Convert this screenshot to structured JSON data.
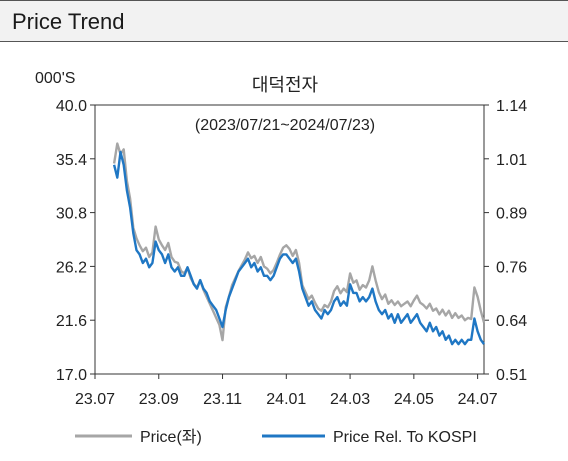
{
  "header": {
    "title": "Price Trend"
  },
  "chart_data": {
    "type": "line",
    "title": "대덕전자",
    "subtitle": "(2023/07/21~2024/07/23)",
    "left_axis": {
      "unit": "000'S",
      "ticks": [
        "40.0",
        "35.4",
        "30.8",
        "26.2",
        "21.6",
        "17.0"
      ],
      "range": [
        17.0,
        40.0
      ]
    },
    "right_axis": {
      "ticks": [
        "1.14",
        "1.01",
        "0.89",
        "0.76",
        "0.64",
        "0.51"
      ],
      "range": [
        0.51,
        1.14
      ]
    },
    "x_axis": {
      "ticks": [
        "23.07",
        "23.09",
        "23.11",
        "24.01",
        "24.03",
        "24.05",
        "24.07"
      ]
    },
    "x_range": [
      0,
      12.2
    ],
    "x_tick_values": [
      0,
      2,
      4,
      6,
      8,
      10,
      12
    ],
    "grid": false,
    "legend_position": "bottom",
    "series": [
      {
        "name": "Price(좌)",
        "axis": "left",
        "color": "#a6a6a6",
        "points": [
          [
            0.6,
            35.0
          ],
          [
            0.7,
            36.7
          ],
          [
            0.8,
            35.8
          ],
          [
            0.9,
            36.2
          ],
          [
            1.0,
            33.5
          ],
          [
            1.1,
            32.0
          ],
          [
            1.2,
            29.5
          ],
          [
            1.3,
            28.6
          ],
          [
            1.4,
            28.0
          ],
          [
            1.5,
            27.5
          ],
          [
            1.6,
            27.8
          ],
          [
            1.7,
            27.0
          ],
          [
            1.8,
            27.4
          ],
          [
            1.9,
            29.6
          ],
          [
            2.0,
            28.5
          ],
          [
            2.1,
            28.0
          ],
          [
            2.2,
            27.6
          ],
          [
            2.3,
            28.2
          ],
          [
            2.4,
            27.0
          ],
          [
            2.5,
            26.6
          ],
          [
            2.6,
            26.5
          ],
          [
            2.7,
            25.8
          ],
          [
            2.8,
            25.6
          ],
          [
            2.9,
            26.1
          ],
          [
            3.0,
            25.2
          ],
          [
            3.1,
            24.7
          ],
          [
            3.2,
            24.4
          ],
          [
            3.3,
            25.0
          ],
          [
            3.4,
            24.2
          ],
          [
            3.5,
            23.6
          ],
          [
            3.6,
            23.0
          ],
          [
            3.7,
            22.4
          ],
          [
            3.8,
            21.8
          ],
          [
            3.9,
            21.2
          ],
          [
            4.0,
            19.9
          ],
          [
            4.1,
            22.7
          ],
          [
            4.2,
            23.6
          ],
          [
            4.3,
            24.6
          ],
          [
            4.4,
            25.2
          ],
          [
            4.5,
            25.8
          ],
          [
            4.6,
            26.3
          ],
          [
            4.7,
            26.8
          ],
          [
            4.8,
            27.4
          ],
          [
            4.9,
            26.9
          ],
          [
            5.0,
            27.1
          ],
          [
            5.1,
            26.5
          ],
          [
            5.2,
            27.0
          ],
          [
            5.3,
            26.2
          ],
          [
            5.4,
            26.0
          ],
          [
            5.5,
            25.6
          ],
          [
            5.6,
            25.9
          ],
          [
            5.7,
            26.5
          ],
          [
            5.8,
            27.2
          ],
          [
            5.9,
            27.8
          ],
          [
            6.0,
            28.0
          ],
          [
            6.1,
            27.7
          ],
          [
            6.2,
            27.1
          ],
          [
            6.3,
            27.6
          ],
          [
            6.4,
            26.5
          ],
          [
            6.5,
            24.6
          ],
          [
            6.6,
            24.0
          ],
          [
            6.7,
            23.4
          ],
          [
            6.8,
            23.7
          ],
          [
            6.9,
            23.1
          ],
          [
            7.0,
            22.6
          ],
          [
            7.1,
            22.4
          ],
          [
            7.2,
            22.9
          ],
          [
            7.3,
            22.7
          ],
          [
            7.4,
            23.2
          ],
          [
            7.5,
            24.1
          ],
          [
            7.6,
            24.5
          ],
          [
            7.7,
            23.9
          ],
          [
            7.8,
            24.3
          ],
          [
            7.9,
            24.0
          ],
          [
            8.0,
            25.6
          ],
          [
            8.1,
            24.8
          ],
          [
            8.2,
            25.0
          ],
          [
            8.3,
            24.2
          ],
          [
            8.4,
            24.6
          ],
          [
            8.5,
            24.4
          ],
          [
            8.6,
            25.0
          ],
          [
            8.7,
            26.2
          ],
          [
            8.8,
            25.0
          ],
          [
            8.9,
            24.0
          ],
          [
            9.0,
            23.4
          ],
          [
            9.1,
            23.8
          ],
          [
            9.2,
            23.0
          ],
          [
            9.3,
            23.3
          ],
          [
            9.4,
            22.9
          ],
          [
            9.5,
            23.2
          ],
          [
            9.6,
            22.8
          ],
          [
            9.7,
            23.0
          ],
          [
            9.8,
            23.2
          ],
          [
            9.9,
            22.8
          ],
          [
            10.0,
            23.3
          ],
          [
            10.1,
            23.7
          ],
          [
            10.2,
            23.1
          ],
          [
            10.3,
            22.9
          ],
          [
            10.4,
            22.6
          ],
          [
            10.5,
            23.0
          ],
          [
            10.6,
            22.4
          ],
          [
            10.7,
            22.6
          ],
          [
            10.8,
            22.1
          ],
          [
            10.9,
            22.5
          ],
          [
            11.0,
            22.0
          ],
          [
            11.1,
            22.4
          ],
          [
            11.2,
            21.8
          ],
          [
            11.3,
            22.2
          ],
          [
            11.4,
            21.8
          ],
          [
            11.5,
            22.0
          ],
          [
            11.6,
            21.6
          ],
          [
            11.7,
            21.8
          ],
          [
            11.8,
            21.7
          ],
          [
            11.9,
            24.4
          ],
          [
            12.0,
            23.6
          ],
          [
            12.1,
            22.4
          ],
          [
            12.2,
            21.4
          ]
        ]
      },
      {
        "name": "Price Rel. To KOSPI",
        "axis": "right",
        "color": "#1f77c4",
        "points": [
          [
            0.6,
            1.0
          ],
          [
            0.7,
            0.97
          ],
          [
            0.8,
            1.03
          ],
          [
            0.9,
            1.0
          ],
          [
            1.0,
            0.94
          ],
          [
            1.1,
            0.9
          ],
          [
            1.2,
            0.84
          ],
          [
            1.3,
            0.8
          ],
          [
            1.4,
            0.79
          ],
          [
            1.5,
            0.77
          ],
          [
            1.6,
            0.78
          ],
          [
            1.7,
            0.76
          ],
          [
            1.8,
            0.77
          ],
          [
            1.9,
            0.82
          ],
          [
            2.0,
            0.8
          ],
          [
            2.1,
            0.79
          ],
          [
            2.2,
            0.77
          ],
          [
            2.3,
            0.79
          ],
          [
            2.4,
            0.76
          ],
          [
            2.5,
            0.75
          ],
          [
            2.6,
            0.76
          ],
          [
            2.7,
            0.74
          ],
          [
            2.8,
            0.74
          ],
          [
            2.9,
            0.76
          ],
          [
            3.0,
            0.74
          ],
          [
            3.1,
            0.72
          ],
          [
            3.2,
            0.71
          ],
          [
            3.3,
            0.73
          ],
          [
            3.4,
            0.71
          ],
          [
            3.5,
            0.7
          ],
          [
            3.6,
            0.68
          ],
          [
            3.7,
            0.67
          ],
          [
            3.8,
            0.66
          ],
          [
            3.9,
            0.64
          ],
          [
            4.0,
            0.62
          ],
          [
            4.1,
            0.66
          ],
          [
            4.2,
            0.69
          ],
          [
            4.3,
            0.71
          ],
          [
            4.4,
            0.73
          ],
          [
            4.5,
            0.75
          ],
          [
            4.6,
            0.76
          ],
          [
            4.7,
            0.77
          ],
          [
            4.8,
            0.78
          ],
          [
            4.9,
            0.76
          ],
          [
            5.0,
            0.77
          ],
          [
            5.1,
            0.75
          ],
          [
            5.2,
            0.76
          ],
          [
            5.3,
            0.74
          ],
          [
            5.4,
            0.74
          ],
          [
            5.5,
            0.73
          ],
          [
            5.6,
            0.74
          ],
          [
            5.7,
            0.76
          ],
          [
            5.8,
            0.78
          ],
          [
            5.9,
            0.79
          ],
          [
            6.0,
            0.79
          ],
          [
            6.1,
            0.78
          ],
          [
            6.2,
            0.77
          ],
          [
            6.3,
            0.78
          ],
          [
            6.4,
            0.75
          ],
          [
            6.5,
            0.71
          ],
          [
            6.6,
            0.69
          ],
          [
            6.7,
            0.67
          ],
          [
            6.8,
            0.68
          ],
          [
            6.9,
            0.66
          ],
          [
            7.0,
            0.65
          ],
          [
            7.1,
            0.64
          ],
          [
            7.2,
            0.66
          ],
          [
            7.3,
            0.65
          ],
          [
            7.4,
            0.66
          ],
          [
            7.5,
            0.68
          ],
          [
            7.6,
            0.69
          ],
          [
            7.7,
            0.67
          ],
          [
            7.8,
            0.68
          ],
          [
            7.9,
            0.67
          ],
          [
            8.0,
            0.72
          ],
          [
            8.1,
            0.7
          ],
          [
            8.2,
            0.7
          ],
          [
            8.3,
            0.68
          ],
          [
            8.4,
            0.69
          ],
          [
            8.5,
            0.68
          ],
          [
            8.6,
            0.69
          ],
          [
            8.7,
            0.71
          ],
          [
            8.8,
            0.68
          ],
          [
            8.9,
            0.66
          ],
          [
            9.0,
            0.65
          ],
          [
            9.1,
            0.66
          ],
          [
            9.2,
            0.64
          ],
          [
            9.3,
            0.65
          ],
          [
            9.4,
            0.63
          ],
          [
            9.5,
            0.65
          ],
          [
            9.6,
            0.63
          ],
          [
            9.7,
            0.64
          ],
          [
            9.8,
            0.65
          ],
          [
            9.9,
            0.63
          ],
          [
            10.0,
            0.64
          ],
          [
            10.1,
            0.65
          ],
          [
            10.2,
            0.63
          ],
          [
            10.3,
            0.62
          ],
          [
            10.4,
            0.61
          ],
          [
            10.5,
            0.63
          ],
          [
            10.6,
            0.61
          ],
          [
            10.7,
            0.62
          ],
          [
            10.8,
            0.6
          ],
          [
            10.9,
            0.61
          ],
          [
            11.0,
            0.59
          ],
          [
            11.1,
            0.6
          ],
          [
            11.2,
            0.58
          ],
          [
            11.3,
            0.59
          ],
          [
            11.4,
            0.58
          ],
          [
            11.5,
            0.59
          ],
          [
            11.6,
            0.58
          ],
          [
            11.7,
            0.59
          ],
          [
            11.8,
            0.59
          ],
          [
            11.9,
            0.64
          ],
          [
            12.0,
            0.61
          ],
          [
            12.1,
            0.59
          ],
          [
            12.2,
            0.58
          ]
        ]
      }
    ]
  }
}
